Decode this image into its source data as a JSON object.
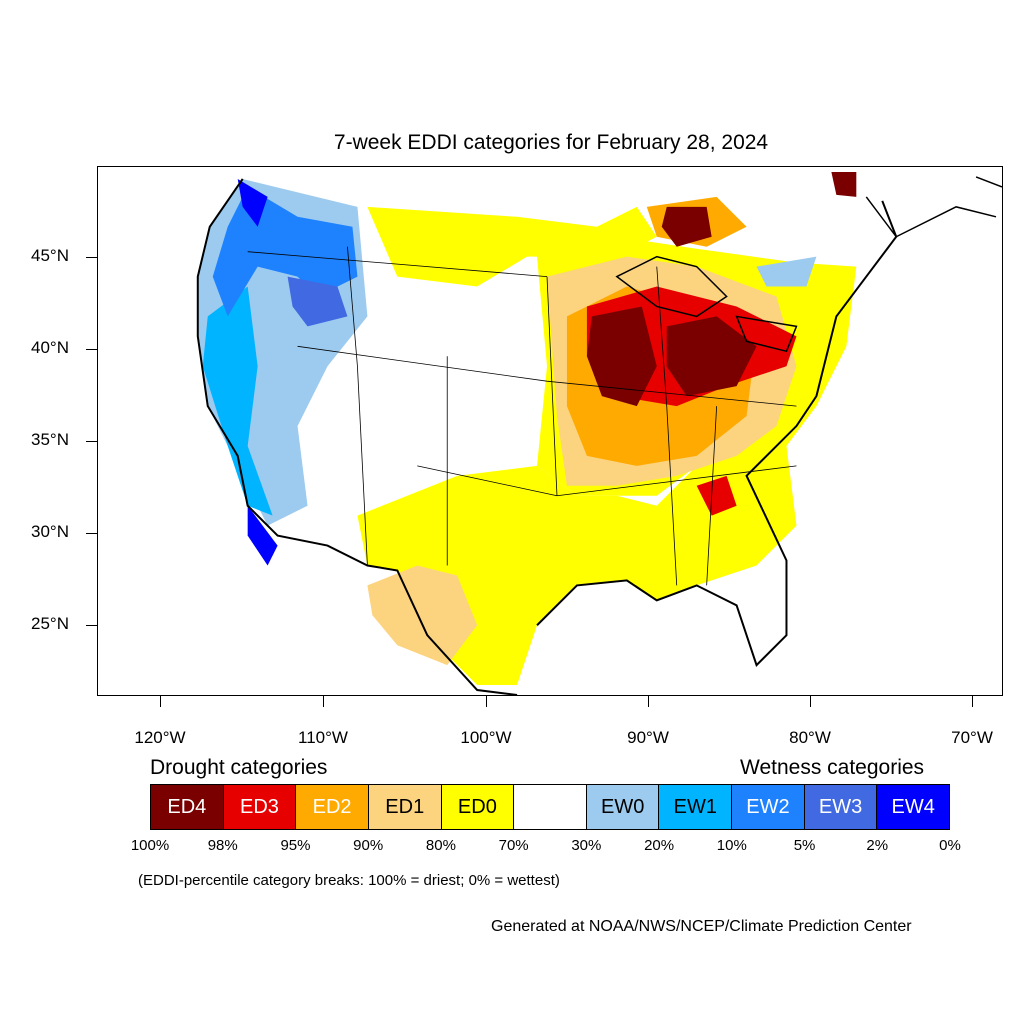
{
  "title": "7-week EDDI categories for February 28, 2024",
  "axes": {
    "lat_labels": [
      "45°N",
      "40°N",
      "35°N",
      "30°N",
      "25°N"
    ],
    "lon_labels": [
      "120°W",
      "110°W",
      "100°W",
      "90°W",
      "80°W",
      "70°W"
    ]
  },
  "legend": {
    "drought_heading": "Drought categories",
    "wetness_heading": "Wetness categories",
    "categories": [
      {
        "label": "ED4",
        "color": "#7a0000",
        "text_color": "#ffffff"
      },
      {
        "label": "ED3",
        "color": "#e60000",
        "text_color": "#ffffff"
      },
      {
        "label": "ED2",
        "color": "#ffaa00",
        "text_color": "#ffffff"
      },
      {
        "label": "ED1",
        "color": "#fcd37f",
        "text_color": "#000000"
      },
      {
        "label": "ED0",
        "color": "#ffff00",
        "text_color": "#000000"
      },
      {
        "label": "",
        "color": "#ffffff",
        "text_color": "#000000"
      },
      {
        "label": "EW0",
        "color": "#9ccbef",
        "text_color": "#000000"
      },
      {
        "label": "EW1",
        "color": "#00b4ff",
        "text_color": "#000000"
      },
      {
        "label": "EW2",
        "color": "#1e82ff",
        "text_color": "#ffffff"
      },
      {
        "label": "EW3",
        "color": "#4169e1",
        "text_color": "#ffffff"
      },
      {
        "label": "EW4",
        "color": "#0000ff",
        "text_color": "#ffffff"
      }
    ],
    "breaks": [
      "100%",
      "98%",
      "95%",
      "90%",
      "80%",
      "70%",
      "30%",
      "20%",
      "10%",
      "5%",
      "2%",
      "0%"
    ]
  },
  "note": "(EDDI-percentile category breaks: 100% = driest; 0% = wettest)",
  "credit": "Generated at NOAA/NWS/NCEP/Climate Prediction Center"
}
